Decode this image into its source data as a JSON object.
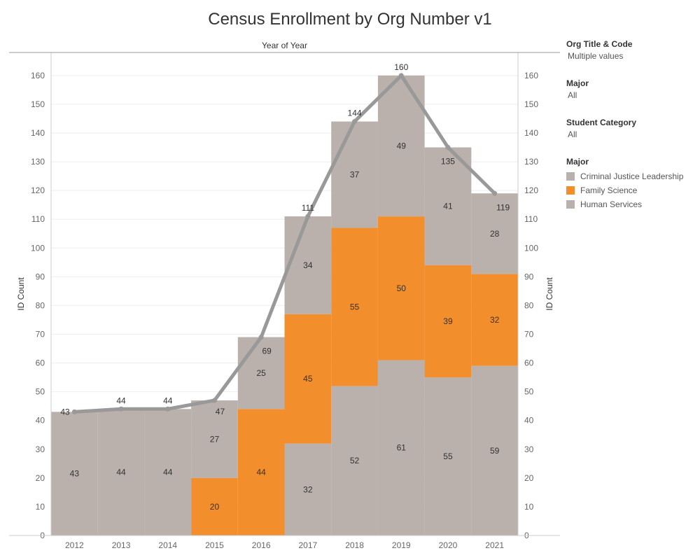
{
  "title": "Census Enrollment by Org Number v1",
  "filters": [
    {
      "label": "Org Title & Code",
      "value": "Multiple values"
    },
    {
      "label": "Major",
      "value": "All"
    },
    {
      "label": "Student Category",
      "value": "All"
    }
  ],
  "legend": {
    "title": "Major",
    "items": [
      {
        "label": "Criminal Justice Leadership",
        "color": "#bab0ac"
      },
      {
        "label": "Family Science",
        "color": "#f28e2b"
      },
      {
        "label": "Human Services",
        "color": "#bab0ac"
      }
    ]
  },
  "chart_data": {
    "type": "bar",
    "stacked": true,
    "title": "Census Enrollment by Org Number v1",
    "column_header": "Year of Year",
    "ylabel": "ID Count",
    "ylabel_right": "ID Count",
    "ylim": [
      0,
      168
    ],
    "yticks": [
      0,
      10,
      20,
      30,
      40,
      50,
      60,
      70,
      80,
      90,
      100,
      110,
      120,
      130,
      140,
      150,
      160
    ],
    "categories": [
      "2012",
      "2013",
      "2014",
      "2015",
      "2016",
      "2017",
      "2018",
      "2019",
      "2020",
      "2021"
    ],
    "series": [
      {
        "name": "Criminal Justice Leadership",
        "color": "#bab0ac",
        "values": [
          43,
          44,
          44,
          0,
          0,
          32,
          52,
          61,
          55,
          59
        ],
        "labels": [
          "43",
          "44",
          "44",
          "",
          "",
          "32",
          "52",
          "61",
          "55",
          "59"
        ]
      },
      {
        "name": "Family Science",
        "color": "#f28e2b",
        "values": [
          0,
          0,
          0,
          20,
          44,
          45,
          55,
          50,
          39,
          32
        ],
        "labels": [
          "",
          "",
          "",
          "20",
          "44",
          "45",
          "55",
          "50",
          "39",
          "32"
        ]
      },
      {
        "name": "Human Services",
        "color": "#bab0ac",
        "values": [
          0,
          0,
          0,
          27,
          25,
          34,
          37,
          49,
          41,
          28
        ],
        "labels": [
          "",
          "",
          "",
          "27",
          "25",
          "34",
          "37",
          "49",
          "41",
          "28"
        ]
      }
    ],
    "totals": [
      43,
      44,
      44,
      47,
      69,
      111,
      144,
      160,
      135,
      119
    ],
    "total_labels": [
      "43",
      "44",
      "44",
      "47",
      "69",
      "111",
      "144",
      "160",
      "135",
      "119"
    ],
    "total_line_color": "#999999",
    "grid": "horizontal",
    "legend_position": "right"
  }
}
